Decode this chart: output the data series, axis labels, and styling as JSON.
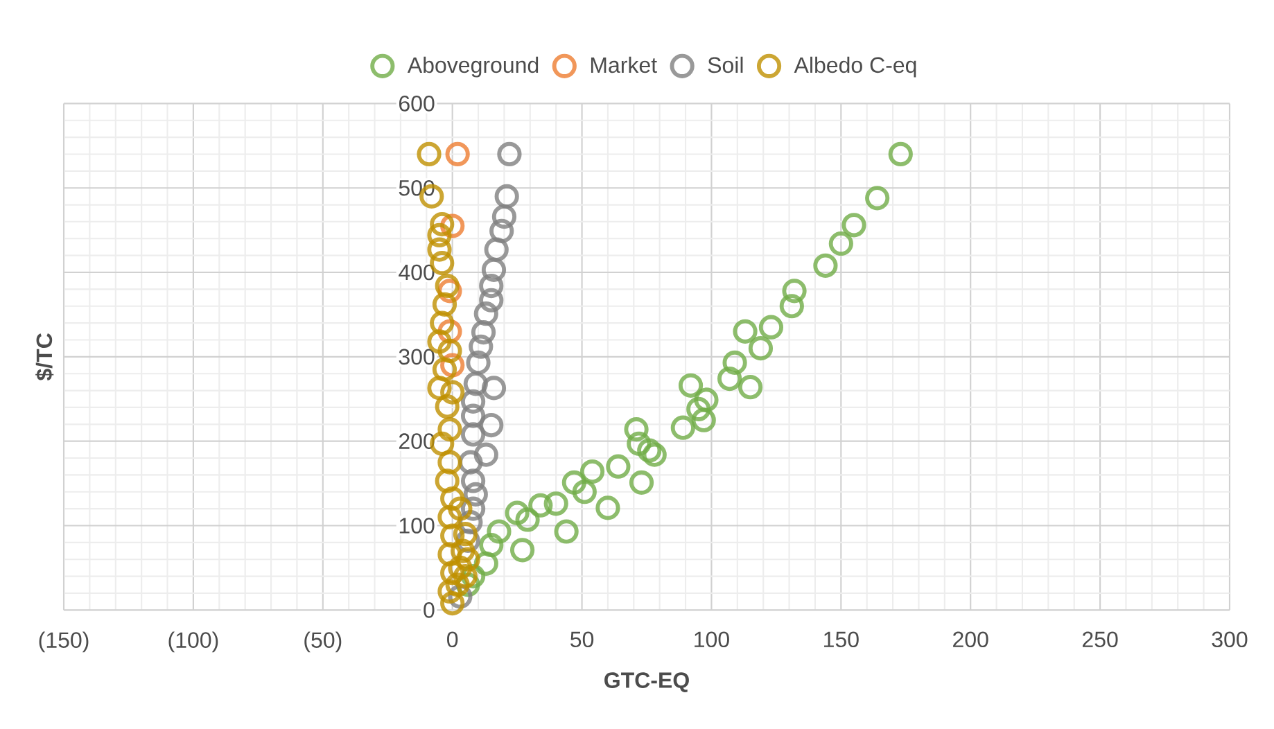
{
  "chart_data": {
    "type": "scatter",
    "xlabel": "GTC-EQ",
    "ylabel": "$/TC",
    "xlim": [
      -150,
      300
    ],
    "ylim": [
      0,
      600
    ],
    "xticks": [
      {
        "value": -150,
        "label": "(150)"
      },
      {
        "value": -100,
        "label": "(100)"
      },
      {
        "value": -50,
        "label": "(50)"
      },
      0,
      50,
      100,
      150,
      200,
      250,
      300
    ],
    "yticks": [
      0,
      100,
      200,
      300,
      400,
      500,
      600
    ],
    "grid": true,
    "legend": "top",
    "marker": "circle",
    "series": [
      {
        "name": "Aboveground",
        "color": "#70ad47",
        "x": [
          173,
          164,
          155,
          150,
          144,
          132,
          131,
          123,
          113,
          119,
          109,
          107,
          115,
          92,
          98,
          95,
          97,
          89,
          71,
          72,
          78,
          76,
          64,
          54,
          73,
          47,
          51,
          60,
          40,
          34,
          29,
          25,
          44,
          18,
          27,
          13,
          15,
          8,
          6
        ],
        "values": [
          540,
          488,
          456,
          434,
          408,
          378,
          360,
          335,
          330,
          310,
          293,
          274,
          264,
          266,
          249,
          238,
          225,
          216,
          214,
          197,
          184,
          189,
          170,
          164,
          151,
          151,
          140,
          121,
          126,
          124,
          107,
          115,
          93,
          93,
          71,
          55,
          77,
          40,
          30
        ]
      },
      {
        "name": "Market",
        "color": "#ed7d31",
        "x": [
          2,
          0,
          -1,
          -1,
          0
        ],
        "values": [
          540,
          455,
          378,
          330,
          290
        ]
      },
      {
        "name": "Soil",
        "color": "#7f7f7f",
        "x": [
          22,
          21,
          20,
          19,
          17,
          16,
          15,
          15,
          13,
          12,
          11,
          10,
          16,
          9,
          8,
          8,
          15,
          8,
          13,
          7,
          8,
          9,
          8,
          7,
          6,
          5,
          4,
          3
        ],
        "values": [
          540,
          490,
          466,
          449,
          427,
          403,
          384,
          367,
          351,
          329,
          312,
          293,
          263,
          268,
          247,
          230,
          219,
          208,
          184,
          175,
          153,
          137,
          120,
          104,
          82,
          null,
          null,
          16
        ]
      },
      {
        "name": "Albedo C-eq",
        "color": "#bf9000",
        "x": [
          -9,
          -8,
          -4,
          -5,
          -5,
          -4,
          -2,
          -3,
          -4,
          -5,
          -1,
          -3,
          -5,
          0,
          -2,
          -1,
          -4,
          -1,
          -2,
          0,
          -1,
          0,
          -1,
          0,
          -1,
          0,
          2,
          3,
          4,
          5,
          3,
          5,
          6
        ],
        "values": [
          540,
          490,
          457,
          444,
          427,
          411,
          384,
          362,
          340,
          318,
          307,
          285,
          263,
          258,
          241,
          214,
          197,
          175,
          153,
          132,
          110,
          88,
          66,
          44,
          22,
          8,
          30,
          50,
          70,
          90,
          120,
          40,
          60
        ]
      }
    ]
  }
}
